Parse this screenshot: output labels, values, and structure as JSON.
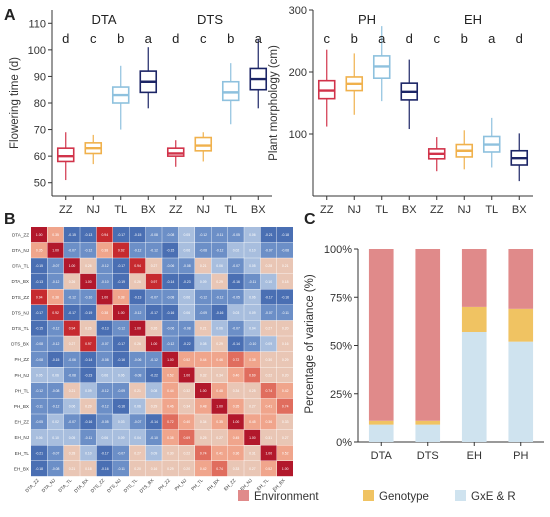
{
  "panels": {
    "a": "A",
    "b": "B",
    "c": "C"
  },
  "chart_data": [
    {
      "type": "box",
      "panel": "A-left",
      "ylabel": "Flowering time (d)",
      "ylim": [
        45,
        115
      ],
      "yticks": [
        50,
        60,
        70,
        80,
        90,
        100,
        110
      ],
      "groups": [
        "DTA",
        "DTS"
      ],
      "categories": [
        "ZZ",
        "NJ",
        "TL",
        "BX",
        "ZZ",
        "NJ",
        "TL",
        "BX"
      ],
      "letters": [
        "d",
        "c",
        "b",
        "a",
        "d",
        "c",
        "b",
        "a"
      ],
      "colors": [
        "#d1334a",
        "#f0b14c",
        "#8ec1de",
        "#1c2566",
        "#d1334a",
        "#f0b14c",
        "#8ec1de",
        "#1c2566"
      ],
      "boxes": [
        {
          "min": 51,
          "q1": 58,
          "median": 60,
          "q3": 63,
          "max": 69
        },
        {
          "min": 57,
          "q1": 61,
          "median": 63,
          "q3": 65,
          "max": 68
        },
        {
          "min": 70,
          "q1": 80,
          "median": 83,
          "q3": 86,
          "max": 94
        },
        {
          "min": 78,
          "q1": 84,
          "median": 88,
          "q3": 92,
          "max": 101
        },
        {
          "min": 56,
          "q1": 60,
          "median": 61,
          "q3": 63,
          "max": 66
        },
        {
          "min": 58,
          "q1": 62,
          "median": 64,
          "q3": 67,
          "max": 69
        },
        {
          "min": 72,
          "q1": 81,
          "median": 84,
          "q3": 88,
          "max": 95
        },
        {
          "min": 78,
          "q1": 85,
          "median": 89,
          "q3": 93,
          "max": 104
        }
      ]
    },
    {
      "type": "box",
      "panel": "A-right",
      "ylabel": "Plant morphology (cm)",
      "ylim": [
        0,
        300
      ],
      "yticks": [
        100,
        200,
        300
      ],
      "groups": [
        "PH",
        "EH"
      ],
      "categories": [
        "ZZ",
        "NJ",
        "TL",
        "BX",
        "ZZ",
        "NJ",
        "TL",
        "BX"
      ],
      "letters": [
        "c",
        "b",
        "a",
        "d",
        "c",
        "b",
        "a",
        "d"
      ],
      "colors": [
        "#d1334a",
        "#f0b14c",
        "#8ec1de",
        "#1c2566",
        "#d1334a",
        "#f0b14c",
        "#8ec1de",
        "#1c2566"
      ],
      "boxes": [
        {
          "min": 112,
          "q1": 157,
          "median": 170,
          "q3": 186,
          "max": 236
        },
        {
          "min": 131,
          "q1": 170,
          "median": 181,
          "q3": 192,
          "max": 230
        },
        {
          "min": 153,
          "q1": 190,
          "median": 209,
          "q3": 226,
          "max": 274
        },
        {
          "min": 108,
          "q1": 155,
          "median": 168,
          "q3": 182,
          "max": 220
        },
        {
          "min": 40,
          "q1": 60,
          "median": 68,
          "q3": 76,
          "max": 95
        },
        {
          "min": 43,
          "q1": 63,
          "median": 73,
          "q3": 83,
          "max": 106
        },
        {
          "min": 46,
          "q1": 71,
          "median": 83,
          "q3": 96,
          "max": 126
        },
        {
          "min": 24,
          "q1": 50,
          "median": 61,
          "q3": 73,
          "max": 101
        }
      ]
    },
    {
      "type": "heatmap",
      "panel": "B",
      "labels": [
        "DTA_ZZ",
        "DTA_NJ",
        "DTA_TL",
        "DTA_BX",
        "DTS_ZZ",
        "DTS_NJ",
        "DTS_TL",
        "DTS_BX",
        "PH_ZZ",
        "PH_NJ",
        "PH_TL",
        "PH_BX",
        "EH_ZZ",
        "EH_NJ",
        "EH_TL",
        "EH_BX"
      ],
      "matrix": [
        [
          1.0,
          0.35,
          -0.15,
          -0.13,
          0.94,
          -0.17,
          -0.15,
          -0.08,
          -0.08,
          0.05,
          -0.12,
          -0.11,
          -0.05,
          0.06,
          -0.21,
          -0.18
        ],
        [
          0.35,
          1.0,
          -0.07,
          -0.12,
          0.38,
          0.92,
          -0.12,
          -0.12,
          -0.15,
          0.06,
          -0.08,
          -0.12,
          0.02,
          0.1,
          -0.07,
          -0.08
        ],
        [
          -0.15,
          -0.07,
          1.0,
          0.26,
          -0.12,
          -0.17,
          0.94,
          0.27,
          -0.06,
          -0.08,
          0.21,
          0.06,
          -0.07,
          0.05,
          0.28,
          0.21
        ],
        [
          -0.13,
          -0.12,
          0.26,
          1.0,
          -0.1,
          -0.19,
          0.26,
          0.97,
          -0.14,
          -0.23,
          0.09,
          0.29,
          -0.16,
          -0.11,
          0.1,
          0.18
        ],
        [
          0.94,
          0.38,
          -0.12,
          -0.1,
          1.0,
          0.38,
          -0.13,
          -0.07,
          -0.08,
          0.06,
          -0.12,
          -0.12,
          -0.05,
          0.06,
          -0.17,
          -0.16
        ],
        [
          -0.17,
          0.92,
          -0.17,
          -0.19,
          0.38,
          1.0,
          -0.12,
          -0.17,
          -0.16,
          0.06,
          -0.09,
          -0.16,
          0.03,
          0.09,
          -0.07,
          -0.11
        ],
        [
          -0.15,
          -0.12,
          0.94,
          0.26,
          -0.13,
          -0.12,
          1.0,
          0.26,
          -0.06,
          -0.08,
          0.21,
          0.06,
          -0.07,
          0.04,
          0.27,
          0.2
        ],
        [
          -0.08,
          -0.12,
          0.27,
          0.97,
          -0.07,
          -0.17,
          0.26,
          1.0,
          -0.12,
          -0.22,
          0.08,
          0.29,
          -0.14,
          -0.1,
          0.09,
          0.16
        ],
        [
          -0.08,
          -0.15,
          -0.06,
          -0.14,
          -0.08,
          -0.16,
          -0.06,
          -0.12,
          1.0,
          0.52,
          0.44,
          0.46,
          0.72,
          0.38,
          0.3,
          0.29
        ],
        [
          0.05,
          0.06,
          -0.08,
          -0.23,
          0.06,
          0.06,
          -0.08,
          -0.22,
          0.52,
          1.0,
          0.32,
          0.34,
          0.4,
          0.69,
          0.22,
          0.2
        ],
        [
          -0.12,
          -0.08,
          0.21,
          0.09,
          -0.12,
          -0.09,
          0.21,
          0.08,
          0.44,
          0.32,
          1.0,
          0.48,
          0.34,
          0.25,
          0.74,
          0.42
        ],
        [
          -0.11,
          -0.12,
          0.06,
          0.29,
          -0.12,
          -0.16,
          0.06,
          0.29,
          0.46,
          0.34,
          0.48,
          1.0,
          0.35,
          0.27,
          0.41,
          0.74
        ],
        [
          -0.05,
          0.02,
          -0.07,
          -0.16,
          -0.05,
          0.03,
          -0.07,
          -0.14,
          0.72,
          0.4,
          0.34,
          0.35,
          1.0,
          0.45,
          0.36,
          0.33
        ],
        [
          0.06,
          0.1,
          0.05,
          -0.11,
          0.06,
          0.09,
          0.04,
          -0.1,
          0.38,
          0.69,
          0.25,
          0.27,
          0.45,
          1.0,
          0.31,
          0.27
        ],
        [
          -0.21,
          -0.07,
          0.28,
          0.1,
          -0.17,
          -0.07,
          0.27,
          0.09,
          0.3,
          0.22,
          0.74,
          0.41,
          0.36,
          0.31,
          1.0,
          0.52
        ],
        [
          -0.18,
          -0.08,
          0.21,
          0.18,
          -0.16,
          -0.11,
          0.2,
          0.16,
          0.29,
          0.2,
          0.42,
          0.74,
          0.33,
          0.27,
          0.52,
          1.0
        ]
      ]
    },
    {
      "type": "stacked-bar",
      "panel": "C",
      "ylabel": "Percentage of variance (%)",
      "ylim": [
        0,
        100
      ],
      "yticks": [
        "0%",
        "25%",
        "50%",
        "75%",
        "100%"
      ],
      "categories": [
        "DTA",
        "DTS",
        "EH",
        "PH"
      ],
      "series": [
        {
          "name": "GxE & R",
          "color": "#cfe3ef",
          "values": [
            9,
            9,
            57,
            52
          ]
        },
        {
          "name": "Genotype",
          "color": "#f0c362",
          "values": [
            2,
            2,
            13,
            17
          ]
        },
        {
          "name": "Environment",
          "color": "#e08a8a",
          "values": [
            89,
            89,
            30,
            31
          ]
        }
      ],
      "legend_position": "bottom"
    }
  ]
}
